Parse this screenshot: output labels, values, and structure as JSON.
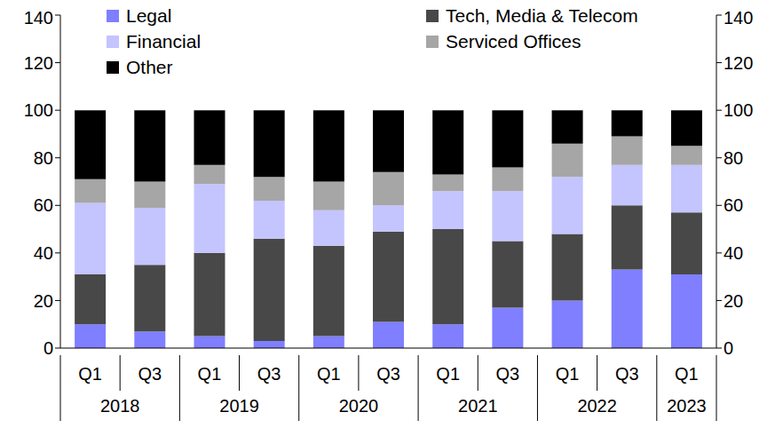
{
  "chart_data": {
    "type": "bar",
    "stacked": true,
    "categories": [
      "Q1",
      "Q3",
      "Q1",
      "Q3",
      "Q1",
      "Q3",
      "Q1",
      "Q3",
      "Q1",
      "Q3",
      "Q1"
    ],
    "x_groups": [
      "2018",
      "2018",
      "2019",
      "2019",
      "2020",
      "2020",
      "2021",
      "2021",
      "2022",
      "2022",
      "2023"
    ],
    "series": [
      {
        "name": "Legal",
        "color": "#7f7fff",
        "values": [
          10,
          7,
          5,
          3,
          5,
          11,
          10,
          17,
          20,
          33,
          31
        ]
      },
      {
        "name": "Tech, Media & Telecom",
        "color": "#484848",
        "values": [
          21,
          28,
          35,
          43,
          38,
          38,
          40,
          28,
          28,
          27,
          26
        ]
      },
      {
        "name": "Financial",
        "color": "#c4c4ff",
        "values": [
          30,
          24,
          29,
          16,
          15,
          11,
          16,
          21,
          24,
          17,
          20
        ]
      },
      {
        "name": "Serviced Offices",
        "color": "#a6a6a6",
        "values": [
          10,
          11,
          8,
          10,
          12,
          14,
          7,
          10,
          14,
          12,
          8
        ]
      },
      {
        "name": "Other",
        "color": "#000000",
        "values": [
          29,
          30,
          23,
          28,
          30,
          26,
          27,
          24,
          14,
          11,
          15
        ]
      }
    ],
    "ylim": [
      0,
      140
    ],
    "yticks": [
      0,
      20,
      40,
      60,
      80,
      100,
      120,
      140
    ],
    "y2lim": [
      0,
      140
    ],
    "y2ticks": [
      0,
      20,
      40,
      60,
      80,
      100,
      120,
      140
    ]
  }
}
